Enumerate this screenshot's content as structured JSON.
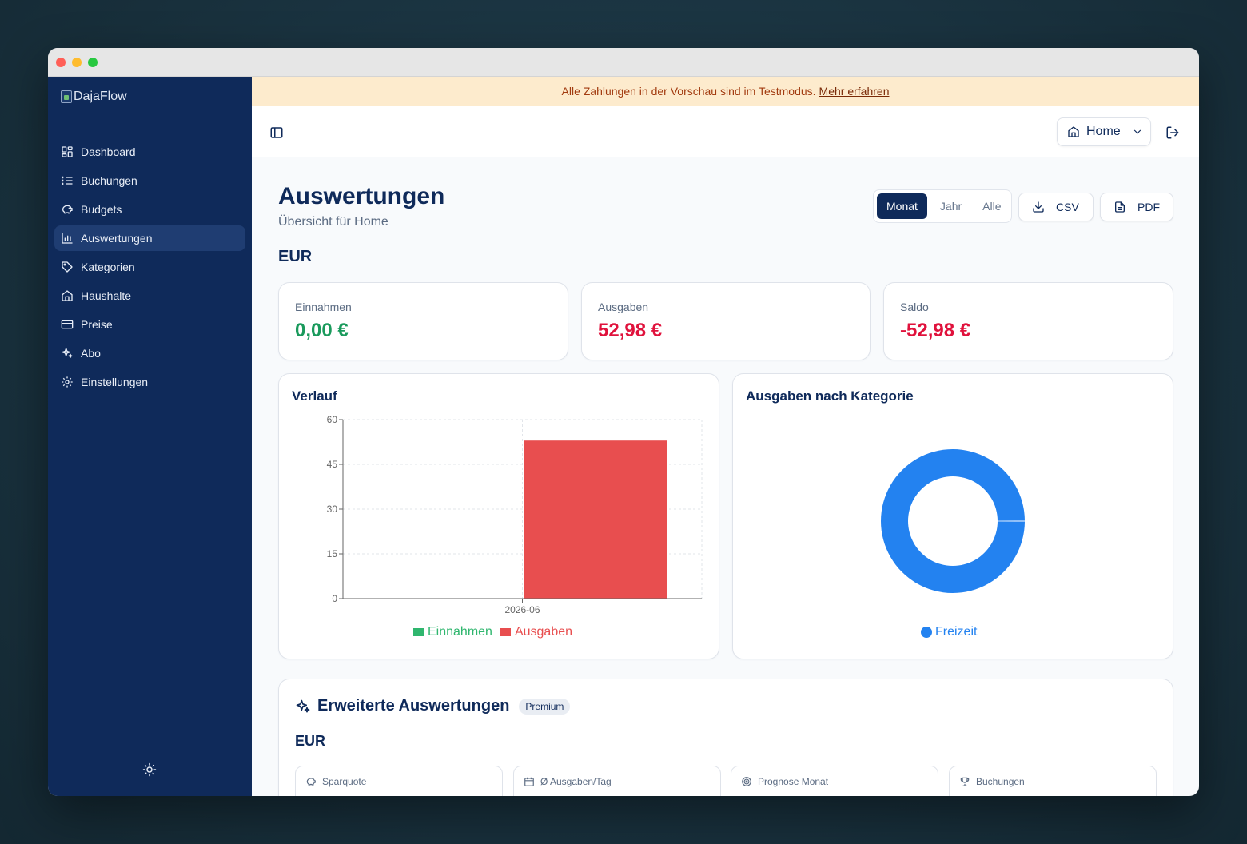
{
  "app": {
    "brand_alt": "DajaFlow"
  },
  "sidebar": {
    "items": [
      {
        "label": "Dashboard",
        "icon": "dashboard-icon"
      },
      {
        "label": "Buchungen",
        "icon": "list-icon"
      },
      {
        "label": "Budgets",
        "icon": "piggy-bank-icon"
      },
      {
        "label": "Auswertungen",
        "icon": "bar-chart-icon",
        "active": true
      },
      {
        "label": "Kategorien",
        "icon": "tag-icon"
      },
      {
        "label": "Haushalte",
        "icon": "home-icon"
      },
      {
        "label": "Preise",
        "icon": "credit-card-icon"
      },
      {
        "label": "Abo",
        "icon": "sparkles-icon"
      },
      {
        "label": "Einstellungen",
        "icon": "gear-icon"
      }
    ]
  },
  "banner": {
    "text": "Alle Zahlungen in der Vorschau sind im Testmodus.",
    "link": "Mehr erfahren"
  },
  "topbar": {
    "household": "Home"
  },
  "page": {
    "title": "Auswertungen",
    "subtitle": "Übersicht für Home",
    "periods": [
      "Monat",
      "Jahr",
      "Alle"
    ],
    "active_period": "Monat",
    "csv_label": "CSV",
    "pdf_label": "PDF",
    "currency": "EUR"
  },
  "kpis": [
    {
      "label": "Einnahmen",
      "value": "0,00 €",
      "color": "#1a9a5c"
    },
    {
      "label": "Ausgaben",
      "value": "52,98 €",
      "color": "#e0123c"
    },
    {
      "label": "Saldo",
      "value": "-52,98 €",
      "color": "#e0123c"
    }
  ],
  "charts": {
    "verlauf_title": "Verlauf",
    "kategorie_title": "Ausgaben nach Kategorie"
  },
  "chart_data": [
    {
      "type": "bar",
      "title": "Verlauf",
      "categories": [
        "2026-06"
      ],
      "series": [
        {
          "name": "Einnahmen",
          "values": [
            0
          ],
          "color": "#2fb66e"
        },
        {
          "name": "Ausgaben",
          "values": [
            52.98
          ],
          "color": "#e84e4f"
        }
      ],
      "ylim": [
        0,
        60
      ],
      "yticks": [
        0,
        15,
        30,
        45,
        60
      ],
      "grid": true,
      "legend": "bottom"
    },
    {
      "type": "pie",
      "title": "Ausgaben nach Kategorie",
      "donut": true,
      "slices": [
        {
          "name": "Freizeit",
          "value": 52.98,
          "color": "#2382f0"
        }
      ],
      "legend": "bottom"
    }
  ],
  "extended": {
    "title": "Erweiterte Auswertungen",
    "badge": "Premium",
    "currency": "EUR",
    "metrics": [
      {
        "label": "Sparquote",
        "icon": "piggy-bank-icon"
      },
      {
        "label": "Ø Ausgaben/Tag",
        "icon": "calendar-icon"
      },
      {
        "label": "Prognose Monat",
        "icon": "target-icon"
      },
      {
        "label": "Buchungen",
        "icon": "trophy-icon"
      }
    ]
  }
}
